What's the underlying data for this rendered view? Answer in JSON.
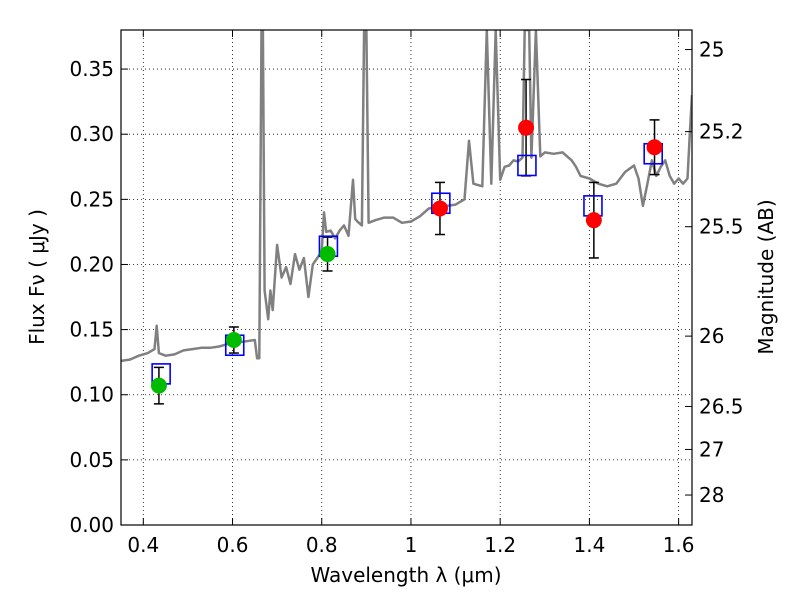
{
  "chart_data": {
    "type": "scatter",
    "xlabel": "Wavelength  λ (μm)",
    "ylabel": "Flux  Fν  ( μJy )",
    "ylabel_right": "Magnitude (AB)",
    "xlim": [
      0.35,
      1.63
    ],
    "ylim": [
      0.0,
      0.38
    ],
    "grid": true,
    "x_ticks": [
      0.4,
      0.6,
      0.8,
      1.0,
      1.2,
      1.4,
      1.6
    ],
    "x_tick_labels": [
      "0.4",
      "0.6",
      "0.8",
      "1",
      "1.2",
      "1.4",
      "1.6"
    ],
    "y_ticks": [
      0.0,
      0.05,
      0.1,
      0.15,
      0.2,
      0.25,
      0.3,
      0.35
    ],
    "y_tick_labels": [
      "0.00",
      "0.05",
      "0.10",
      "0.15",
      "0.20",
      "0.25",
      "0.30",
      "0.35"
    ],
    "right_ticks": [
      {
        "label": "25",
        "flux": 0.365
      },
      {
        "label": "25.2",
        "flux": 0.302
      },
      {
        "label": "25.5",
        "flux": 0.229
      },
      {
        "label": "26",
        "flux": 0.145
      },
      {
        "label": "26.5",
        "flux": 0.091
      },
      {
        "label": "27",
        "flux": 0.058
      },
      {
        "label": "28",
        "flux": 0.023
      }
    ],
    "colors": {
      "spectrum": "#808080",
      "model": "#0000ff",
      "red": "#ff0000",
      "green": "#00bb00",
      "errorbar": "#000000"
    },
    "spectrum": [
      [
        0.35,
        0.126
      ],
      [
        0.37,
        0.127
      ],
      [
        0.39,
        0.13
      ],
      [
        0.41,
        0.132
      ],
      [
        0.425,
        0.135
      ],
      [
        0.43,
        0.153
      ],
      [
        0.435,
        0.132
      ],
      [
        0.45,
        0.13
      ],
      [
        0.47,
        0.131
      ],
      [
        0.49,
        0.134
      ],
      [
        0.51,
        0.135
      ],
      [
        0.53,
        0.136
      ],
      [
        0.55,
        0.136
      ],
      [
        0.57,
        0.137
      ],
      [
        0.59,
        0.139
      ],
      [
        0.61,
        0.14
      ],
      [
        0.63,
        0.141
      ],
      [
        0.65,
        0.142
      ],
      [
        0.655,
        0.128
      ],
      [
        0.66,
        0.128
      ],
      [
        0.665,
        0.38
      ],
      [
        0.668,
        0.38
      ],
      [
        0.672,
        0.18
      ],
      [
        0.68,
        0.158
      ],
      [
        0.685,
        0.18
      ],
      [
        0.69,
        0.165
      ],
      [
        0.7,
        0.215
      ],
      [
        0.71,
        0.19
      ],
      [
        0.72,
        0.198
      ],
      [
        0.73,
        0.185
      ],
      [
        0.74,
        0.208
      ],
      [
        0.75,
        0.196
      ],
      [
        0.76,
        0.205
      ],
      [
        0.77,
        0.175
      ],
      [
        0.78,
        0.2
      ],
      [
        0.79,
        0.205
      ],
      [
        0.8,
        0.21
      ],
      [
        0.805,
        0.24
      ],
      [
        0.81,
        0.225
      ],
      [
        0.82,
        0.226
      ],
      [
        0.83,
        0.22
      ],
      [
        0.84,
        0.226
      ],
      [
        0.85,
        0.23
      ],
      [
        0.86,
        0.222
      ],
      [
        0.87,
        0.265
      ],
      [
        0.875,
        0.235
      ],
      [
        0.88,
        0.233
      ],
      [
        0.89,
        0.23
      ],
      [
        0.895,
        0.38
      ],
      [
        0.9,
        0.38
      ],
      [
        0.905,
        0.232
      ],
      [
        0.92,
        0.234
      ],
      [
        0.94,
        0.236
      ],
      [
        0.96,
        0.236
      ],
      [
        0.98,
        0.232
      ],
      [
        1.0,
        0.233
      ],
      [
        1.02,
        0.237
      ],
      [
        1.04,
        0.243
      ],
      [
        1.06,
        0.244
      ],
      [
        1.08,
        0.245
      ],
      [
        1.1,
        0.246
      ],
      [
        1.12,
        0.25
      ],
      [
        1.13,
        0.295
      ],
      [
        1.14,
        0.262
      ],
      [
        1.16,
        0.26
      ],
      [
        1.17,
        0.38
      ],
      [
        1.18,
        0.262
      ],
      [
        1.19,
        0.38
      ],
      [
        1.2,
        0.265
      ],
      [
        1.21,
        0.275
      ],
      [
        1.22,
        0.276
      ],
      [
        1.23,
        0.28
      ],
      [
        1.24,
        0.279
      ],
      [
        1.25,
        0.282
      ],
      [
        1.255,
        0.38
      ],
      [
        1.265,
        0.38
      ],
      [
        1.27,
        0.282
      ],
      [
        1.28,
        0.38
      ],
      [
        1.29,
        0.283
      ],
      [
        1.3,
        0.286
      ],
      [
        1.32,
        0.285
      ],
      [
        1.34,
        0.286
      ],
      [
        1.36,
        0.28
      ],
      [
        1.37,
        0.275
      ],
      [
        1.38,
        0.268
      ],
      [
        1.4,
        0.266
      ],
      [
        1.42,
        0.262
      ],
      [
        1.44,
        0.26
      ],
      [
        1.46,
        0.262
      ],
      [
        1.48,
        0.271
      ],
      [
        1.5,
        0.276
      ],
      [
        1.51,
        0.266
      ],
      [
        1.52,
        0.245
      ],
      [
        1.53,
        0.262
      ],
      [
        1.54,
        0.28
      ],
      [
        1.55,
        0.268
      ],
      [
        1.56,
        0.275
      ],
      [
        1.57,
        0.28
      ],
      [
        1.58,
        0.268
      ],
      [
        1.59,
        0.262
      ],
      [
        1.6,
        0.266
      ],
      [
        1.61,
        0.262
      ],
      [
        1.62,
        0.266
      ],
      [
        1.625,
        0.3
      ],
      [
        1.63,
        0.33
      ]
    ],
    "model_points": [
      {
        "x": 0.44,
        "y": 0.116
      },
      {
        "x": 0.605,
        "y": 0.138
      },
      {
        "x": 0.815,
        "y": 0.214
      },
      {
        "x": 1.067,
        "y": 0.247
      },
      {
        "x": 1.26,
        "y": 0.276
      },
      {
        "x": 1.408,
        "y": 0.245
      },
      {
        "x": 1.543,
        "y": 0.285
      }
    ],
    "observed_points": [
      {
        "x": 0.435,
        "y": 0.107,
        "err": 0.014,
        "color": "green"
      },
      {
        "x": 0.603,
        "y": 0.142,
        "err": 0.01,
        "color": "green"
      },
      {
        "x": 0.813,
        "y": 0.208,
        "err": 0.013,
        "color": "green"
      },
      {
        "x": 1.065,
        "y": 0.243,
        "err": 0.02,
        "color": "red"
      },
      {
        "x": 1.258,
        "y": 0.305,
        "err": 0.037,
        "color": "red"
      },
      {
        "x": 1.41,
        "y": 0.234,
        "err": 0.029,
        "color": "red"
      },
      {
        "x": 1.546,
        "y": 0.29,
        "err": 0.021,
        "color": "red"
      }
    ]
  }
}
